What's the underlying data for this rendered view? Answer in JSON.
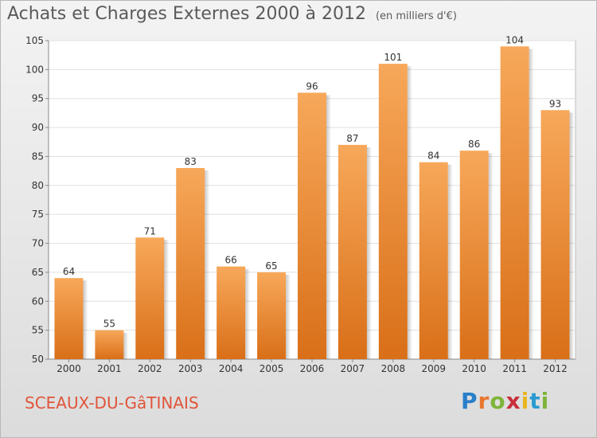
{
  "header": {
    "title": "Achats et Charges Externes 2000 à 2012",
    "subtitle": "(en milliers d'€)"
  },
  "footer": {
    "commune": "SCEAUX-DU-GâTINAIS",
    "brand_letters": [
      "P",
      "r",
      "o",
      "x",
      "i",
      "t",
      "i"
    ]
  },
  "chart_data": {
    "type": "bar",
    "title": "Achats et Charges Externes 2000 à 2012",
    "subtitle": "(en milliers d'€)",
    "categories": [
      "2000",
      "2001",
      "2002",
      "2003",
      "2004",
      "2005",
      "2006",
      "2007",
      "2008",
      "2009",
      "2010",
      "2011",
      "2012"
    ],
    "values": [
      64,
      55,
      71,
      83,
      66,
      65,
      96,
      87,
      101,
      84,
      86,
      104,
      93
    ],
    "ylim": [
      50,
      105
    ],
    "yticks": [
      50,
      55,
      60,
      65,
      70,
      75,
      80,
      85,
      90,
      95,
      100,
      105
    ],
    "grid": "horizontal",
    "bar_color_top": "#f7a85a",
    "bar_color_bottom": "#d96f18"
  }
}
